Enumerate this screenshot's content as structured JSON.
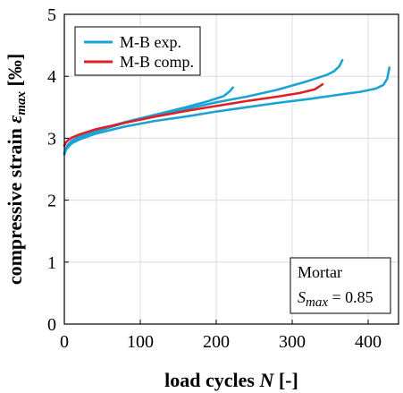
{
  "chart_data": {
    "type": "line",
    "xlabel": "load cycles N [-]",
    "ylabel": "compressive strain εmax [‰]",
    "xlim": [
      0,
      440
    ],
    "ylim": [
      0,
      5
    ],
    "xticks": [
      0,
      100,
      200,
      300,
      400
    ],
    "yticks": [
      0,
      1,
      2,
      3,
      4,
      5
    ],
    "grid": true,
    "legend": {
      "position": "top-left",
      "entries": [
        {
          "label": "M-B exp.",
          "color": "#1aa3d4"
        },
        {
          "label": "M-B comp.",
          "color": "#e01f26"
        }
      ]
    },
    "annotation": {
      "position": "bottom-right",
      "line1": "Mortar",
      "line2": "Smax = 0.85"
    },
    "series": [
      {
        "name": "M-B exp.",
        "color": "#1aa3d4",
        "x": [
          0,
          2,
          5,
          10,
          20,
          40,
          80,
          120,
          160,
          190,
          210,
          218,
          222
        ],
        "y": [
          2.74,
          2.82,
          2.88,
          2.93,
          3.0,
          3.1,
          3.25,
          3.38,
          3.5,
          3.6,
          3.68,
          3.76,
          3.82
        ]
      },
      {
        "name": "M-B exp.",
        "color": "#1aa3d4",
        "x": [
          0,
          2,
          5,
          10,
          20,
          40,
          80,
          120,
          160,
          200,
          240,
          280,
          320,
          345,
          355,
          362,
          366
        ],
        "y": [
          2.76,
          2.84,
          2.9,
          2.96,
          3.03,
          3.12,
          3.26,
          3.38,
          3.47,
          3.58,
          3.67,
          3.78,
          3.92,
          4.02,
          4.08,
          4.16,
          4.26
        ]
      },
      {
        "name": "M-B exp.",
        "color": "#1aa3d4",
        "x": [
          0,
          2,
          5,
          10,
          20,
          40,
          80,
          120,
          160,
          200,
          240,
          280,
          320,
          360,
          390,
          410,
          420,
          425,
          428
        ],
        "y": [
          2.74,
          2.81,
          2.86,
          2.92,
          2.98,
          3.07,
          3.19,
          3.28,
          3.35,
          3.43,
          3.5,
          3.57,
          3.63,
          3.7,
          3.75,
          3.8,
          3.86,
          3.96,
          4.14
        ]
      },
      {
        "name": "M-B comp.",
        "color": "#e01f26",
        "x": [
          0,
          2,
          5,
          10,
          20,
          40,
          80,
          120,
          160,
          200,
          240,
          280,
          310,
          330,
          340
        ],
        "y": [
          2.88,
          2.93,
          2.97,
          3.01,
          3.06,
          3.14,
          3.25,
          3.35,
          3.44,
          3.52,
          3.6,
          3.67,
          3.73,
          3.79,
          3.87
        ]
      }
    ]
  }
}
